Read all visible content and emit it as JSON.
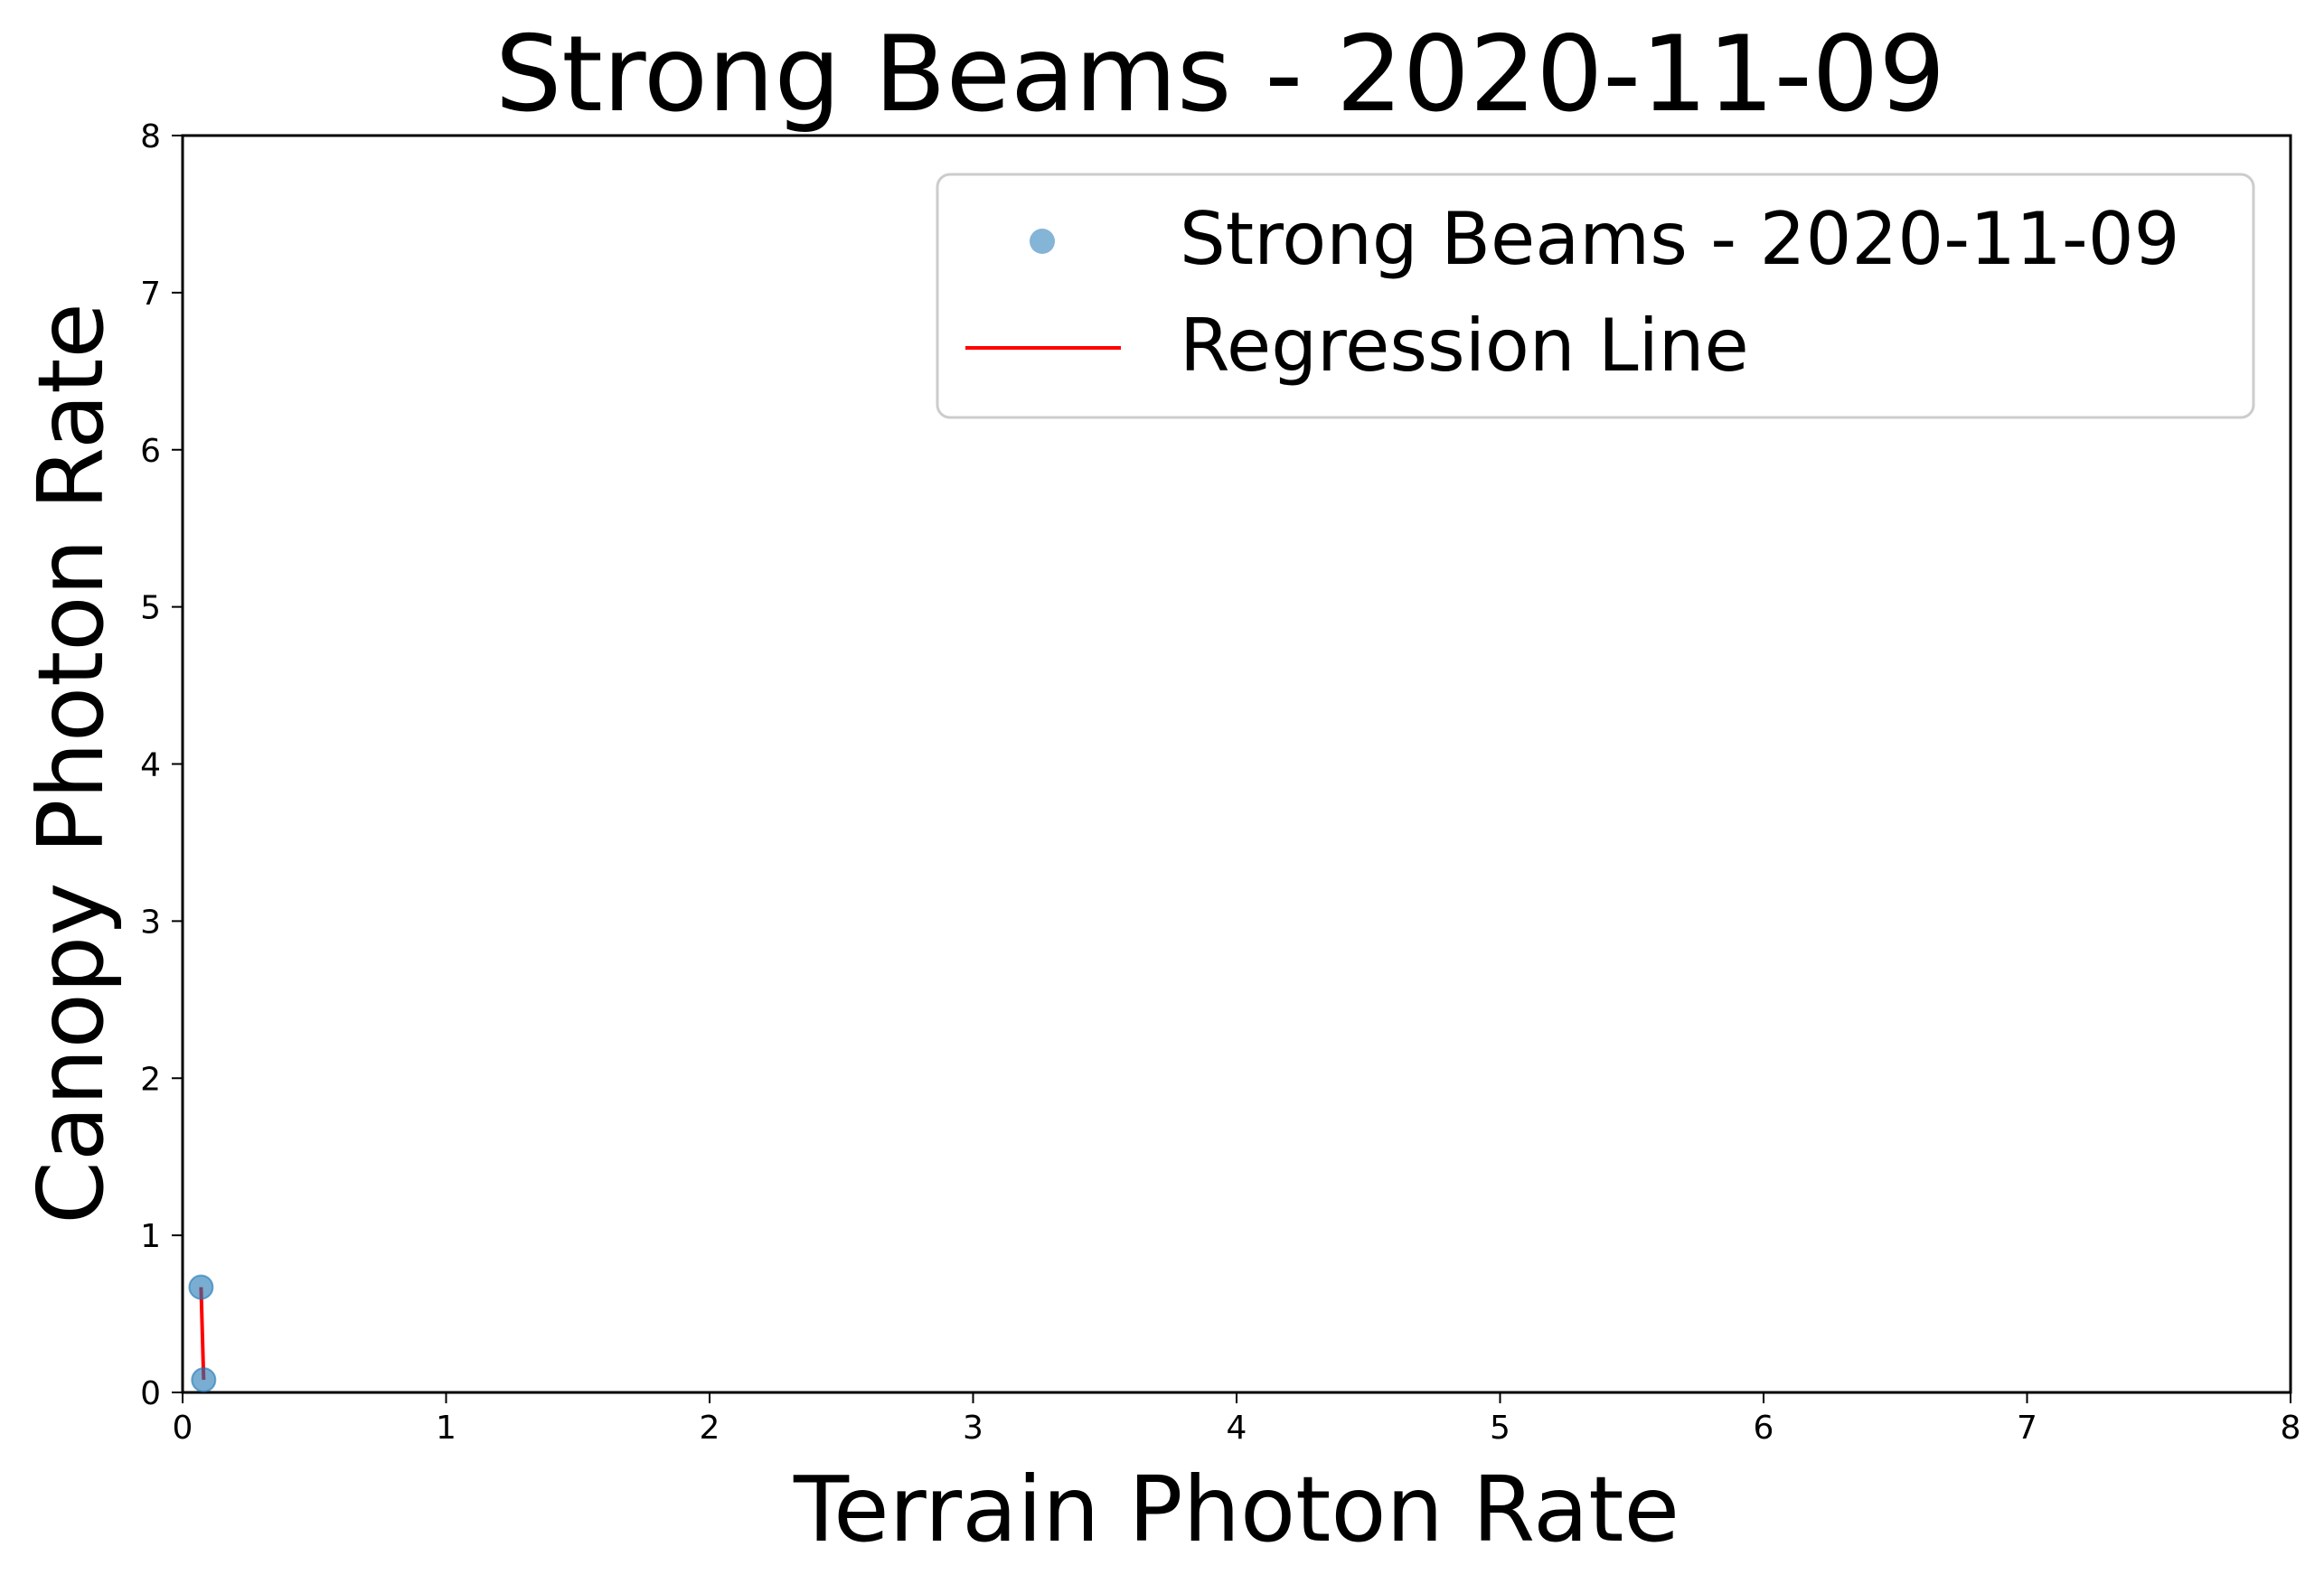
{
  "chart_data": {
    "type": "scatter",
    "title": "Strong Beams - 2020-11-09",
    "xlabel": "Terrain Photon Rate",
    "ylabel": "Canopy Photon Rate",
    "xlim": [
      0,
      8
    ],
    "ylim": [
      0,
      8
    ],
    "xticks": [
      0,
      1,
      2,
      3,
      4,
      5,
      6,
      7,
      8
    ],
    "yticks": [
      0,
      1,
      2,
      3,
      4,
      5,
      6,
      7,
      8
    ],
    "grid": false,
    "legend_position": "top-right",
    "series": [
      {
        "name": "Strong Beams - 2020-11-09",
        "kind": "scatter",
        "color": "#1f77b4",
        "points": [
          {
            "x": 0.07,
            "y": 0.67
          },
          {
            "x": 0.08,
            "y": 0.08
          }
        ]
      },
      {
        "name": "Regression Line",
        "kind": "line",
        "color": "#ff0000",
        "points": [
          {
            "x": 0.07,
            "y": 0.67
          },
          {
            "x": 0.08,
            "y": 0.08
          }
        ]
      }
    ]
  }
}
